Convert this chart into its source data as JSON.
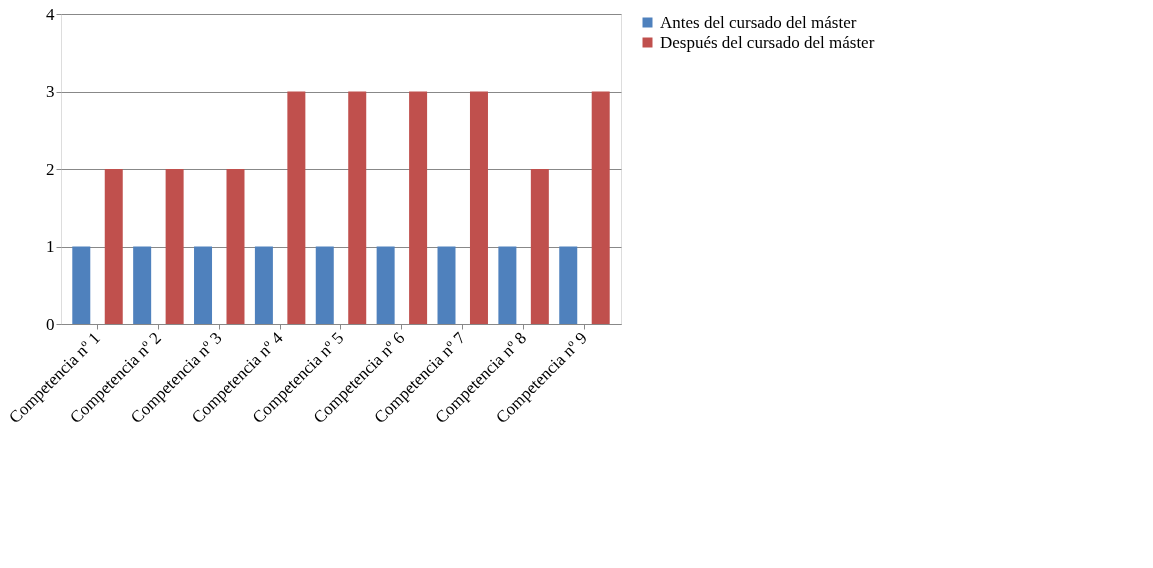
{
  "chart_data": {
    "type": "bar",
    "categories": [
      "Competencia nº 1",
      "Competencia nº 2",
      "Competencia nº 3",
      "Competencia nº 4",
      "Competencia nº 5",
      "Competencia nº 6",
      "Competencia nº 7",
      "Competencia nº 8",
      "Competencia nº 9"
    ],
    "series": [
      {
        "name": "Antes del cursado del máster",
        "color": "#4f81bd",
        "values": [
          1,
          1,
          1,
          1,
          1,
          1,
          1,
          1,
          1
        ]
      },
      {
        "name": "Después del cursado del máster",
        "color": "#c0504d",
        "values": [
          2,
          2,
          2,
          3,
          3,
          3,
          3,
          2,
          3
        ]
      }
    ],
    "ylim": [
      0,
      4
    ],
    "yticks": [
      0,
      1,
      2,
      3,
      4
    ],
    "grid": "y",
    "legend": "right"
  }
}
